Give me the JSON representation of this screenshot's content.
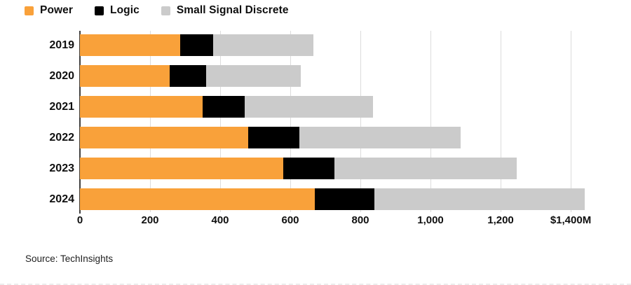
{
  "legend": {
    "items": [
      {
        "label": "Power",
        "color": "#F9A13A"
      },
      {
        "label": "Logic",
        "color": "#000000"
      },
      {
        "label": "Small Signal Discrete",
        "color": "#CBCBCB"
      }
    ]
  },
  "source": {
    "text": "Source: TechInsights"
  },
  "chart_data": {
    "type": "bar",
    "orientation": "horizontal",
    "stacked": true,
    "title": "",
    "xlabel": "",
    "ylabel": "",
    "unit": "$M",
    "categories": [
      "2019",
      "2020",
      "2021",
      "2022",
      "2023",
      "2024"
    ],
    "series": [
      {
        "name": "Power",
        "color": "#F9A13A",
        "values": [
          285,
          255,
          350,
          480,
          580,
          670
        ]
      },
      {
        "name": "Logic",
        "color": "#000000",
        "values": [
          95,
          105,
          120,
          145,
          145,
          170
        ]
      },
      {
        "name": "Small Signal Discrete",
        "color": "#CBCBCB",
        "values": [
          285,
          270,
          365,
          460,
          520,
          600
        ]
      }
    ],
    "totals": [
      665,
      630,
      835,
      1085,
      1245,
      1440
    ],
    "x_axis": {
      "min": 0,
      "max": 1500,
      "tick_values": [
        0,
        200,
        400,
        600,
        800,
        1000,
        1200,
        1400
      ],
      "tick_labels": [
        "0",
        "200",
        "400",
        "600",
        "800",
        "1,000",
        "1,200",
        "$1,400M"
      ]
    },
    "grid": true,
    "legend_position": "top-left"
  },
  "style": {
    "gridline_color": "#dcdcdc",
    "axis_color": "#3f3f3f"
  }
}
